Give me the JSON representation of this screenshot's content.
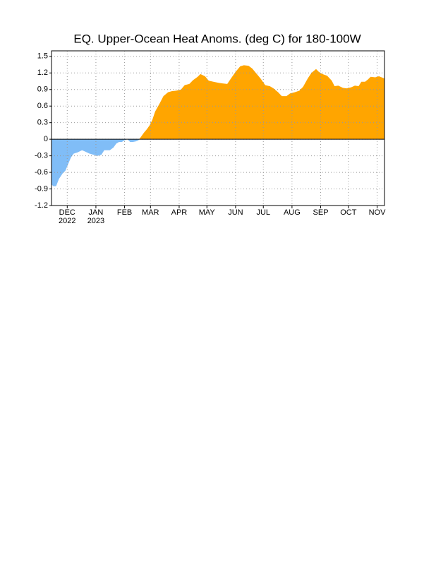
{
  "chart_data": {
    "type": "area",
    "title": "EQ. Upper-Ocean Heat Anoms. (deg C) for 180-100W",
    "x": [
      -17,
      -15,
      -12,
      -9,
      -5,
      -2,
      1,
      4,
      7,
      11,
      16,
      19,
      24,
      28,
      33,
      37,
      40,
      46,
      50,
      53,
      56,
      59,
      62,
      65,
      68,
      71,
      74,
      77,
      80,
      83,
      86,
      89,
      92,
      95,
      100,
      104,
      109,
      113,
      118,
      123,
      127,
      132,
      136,
      141,
      144,
      149,
      153,
      158,
      164,
      168,
      173,
      177,
      182,
      187,
      191,
      196,
      200,
      205,
      209,
      214,
      219,
      223,
      228,
      232,
      237,
      241,
      246,
      251,
      255,
      260,
      264,
      269,
      272,
      276,
      281,
      286,
      289,
      293,
      298,
      302,
      307,
      311,
      315,
      318,
      322,
      325,
      328,
      333,
      337,
      343
    ],
    "values": [
      -0.82,
      -0.85,
      -0.85,
      -0.72,
      -0.62,
      -0.57,
      -0.45,
      -0.33,
      -0.26,
      -0.24,
      -0.2,
      -0.22,
      -0.26,
      -0.28,
      -0.3,
      -0.28,
      -0.2,
      -0.2,
      -0.15,
      -0.08,
      -0.05,
      -0.05,
      -0.02,
      0,
      -0.05,
      -0.05,
      -0.04,
      -0.02,
      0.05,
      0.12,
      0.18,
      0.25,
      0.35,
      0.5,
      0.65,
      0.78,
      0.85,
      0.87,
      0.88,
      0.9,
      0.98,
      1.0,
      1.07,
      1.13,
      1.18,
      1.14,
      1.06,
      1.04,
      1.02,
      1.01,
      1.0,
      1.1,
      1.22,
      1.32,
      1.34,
      1.33,
      1.28,
      1.18,
      1.1,
      0.98,
      0.96,
      0.92,
      0.85,
      0.78,
      0.78,
      0.83,
      0.85,
      0.88,
      0.95,
      1.1,
      1.2,
      1.27,
      1.22,
      1.18,
      1.15,
      1.06,
      0.96,
      0.97,
      0.93,
      0.92,
      0.94,
      0.97,
      0.96,
      1.04,
      1.04,
      1.08,
      1.13,
      1.12,
      1.14,
      1.1
    ],
    "positive_color": "#ffa500",
    "negative_color": "#80bdf7",
    "xlim": [
      -17,
      343
    ],
    "xticks": [
      {
        "value": 0,
        "label": "DEC"
      },
      {
        "value": 31,
        "label": "JAN"
      },
      {
        "value": 62,
        "label": "FEB"
      },
      {
        "value": 90,
        "label": "MAR"
      },
      {
        "value": 121,
        "label": "APR"
      },
      {
        "value": 151,
        "label": "MAY"
      },
      {
        "value": 182,
        "label": "JUN"
      },
      {
        "value": 212,
        "label": "JUL"
      },
      {
        "value": 243,
        "label": "AUG"
      },
      {
        "value": 274,
        "label": "SEP"
      },
      {
        "value": 304,
        "label": "OCT"
      },
      {
        "value": 335,
        "label": "NOV"
      }
    ],
    "year_labels": [
      {
        "value": 0,
        "label": "2022"
      },
      {
        "value": 31,
        "label": "2023"
      }
    ],
    "ylim": [
      -1.2,
      1.6
    ],
    "yticks": [
      1.5,
      1.2,
      0.9,
      0.6,
      0.3,
      0,
      -0.3,
      -0.6,
      -0.9,
      -1.2
    ],
    "grid": true
  }
}
